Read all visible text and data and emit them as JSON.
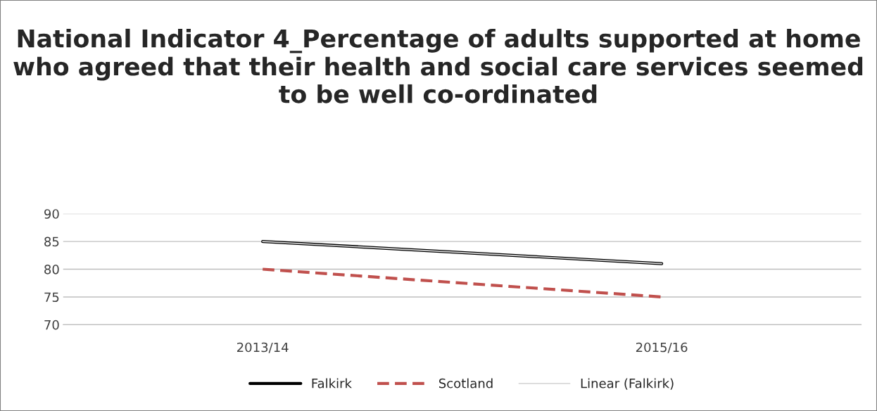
{
  "chart_data": {
    "type": "line",
    "title": "National Indicator 4_Percentage of adults supported at home who agreed that their health and social care services seemed to be well co-ordinated",
    "categories": [
      "2013/14",
      "2015/16"
    ],
    "series": [
      {
        "name": "Falkirk",
        "color": "#000000",
        "values": [
          85,
          81
        ],
        "line_style": "solid"
      },
      {
        "name": "Scotland",
        "color": "#c0504d",
        "values": [
          80,
          75
        ],
        "line_style": "dashed"
      },
      {
        "name": "Linear (Falkirk)",
        "color": "#d9d9d9",
        "values": [
          85,
          81
        ],
        "line_style": "solid"
      }
    ],
    "ylim": [
      70,
      90
    ],
    "yticks": [
      70,
      75,
      80,
      85,
      90
    ],
    "grid": "y",
    "legend": "bottom",
    "marker": "none"
  }
}
